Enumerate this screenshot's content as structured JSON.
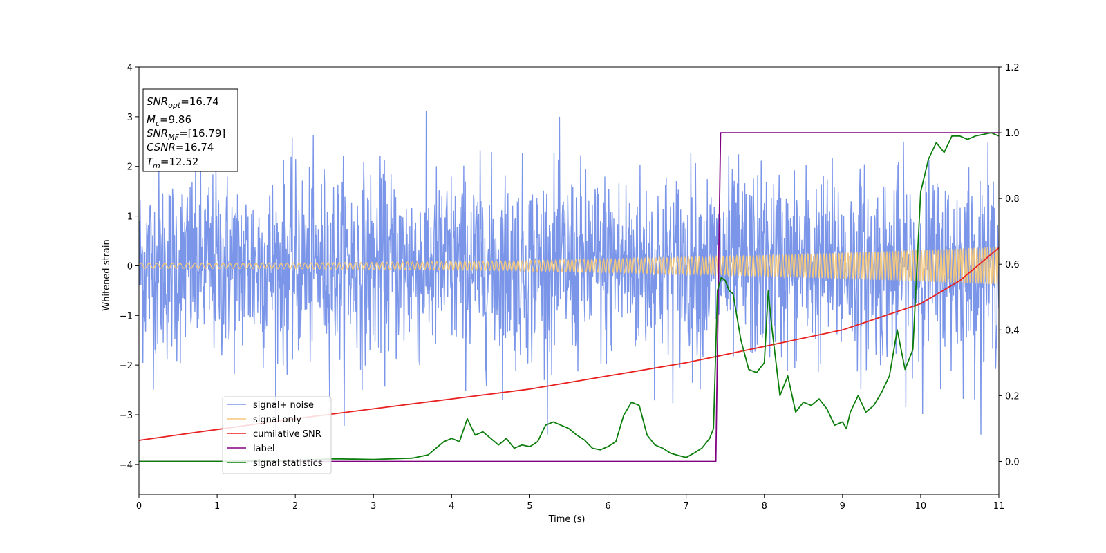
{
  "chart_data": {
    "type": "line",
    "xlabel": "Time (s)",
    "ylabel": "Whitened strain",
    "xlim": [
      0,
      11
    ],
    "ylim": [
      -4.6,
      4
    ],
    "y2lim": [
      -0.1,
      1.2
    ],
    "x_ticks": [
      "0",
      "1",
      "2",
      "3",
      "4",
      "5",
      "6",
      "7",
      "8",
      "9",
      "10",
      "11"
    ],
    "y_ticks": [
      "4",
      "3",
      "2",
      "1",
      "0",
      "−1",
      "−2",
      "−3",
      "−4"
    ],
    "y_tick_values": [
      4,
      3,
      2,
      1,
      0,
      -1,
      -2,
      -3,
      -4
    ],
    "y2_ticks": [
      "1.2",
      "1.0",
      "0.8",
      "0.6",
      "0.4",
      "0.2",
      "0.0"
    ],
    "y2_tick_values": [
      1.2,
      1.0,
      0.8,
      0.6,
      0.4,
      0.2,
      0.0
    ],
    "legend_position": "lower-left",
    "annotation": {
      "snr_opt": {
        "var": "SNR",
        "sub": "opt",
        "value": "=16.74"
      },
      "mc": {
        "var": "M",
        "sub": "c",
        "value": "=9.86"
      },
      "snr_mf": {
        "var": "SNR",
        "sub": "MF",
        "value": "=[16.79]"
      },
      "csnr": {
        "var": "CSNR",
        "sub": "",
        "value": "=16.74"
      },
      "tm": {
        "var": "T",
        "sub": "m",
        "value": "=12.52"
      }
    },
    "series": [
      {
        "name": "signal+ noise",
        "color": "#7b96e9",
        "axis": "left",
        "note": "noisy whitened strain, roughly |y| up to 3.4"
      },
      {
        "name": "signal only",
        "color": "#f5c87a",
        "axis": "left",
        "note": "chirp; amplitude ~0.05 at t=0 growing to ~0.38 at t=11"
      },
      {
        "name": "cumilative SNR",
        "color": "#e82020",
        "axis": "right",
        "x": [
          0,
          1,
          2,
          3,
          4,
          5,
          6,
          7,
          8,
          9,
          10,
          10.5,
          11
        ],
        "values": [
          0.064,
          0.097,
          0.13,
          0.16,
          0.19,
          0.22,
          0.26,
          0.3,
          0.35,
          0.4,
          0.48,
          0.55,
          0.65
        ]
      },
      {
        "name": "label",
        "color": "#800080",
        "axis": "right",
        "x": [
          0,
          7.38,
          7.44,
          11
        ],
        "values": [
          0,
          0,
          1,
          1
        ]
      },
      {
        "name": "signal statistics",
        "color": "#0a7d0a",
        "axis": "right",
        "x": [
          0,
          1,
          2,
          2.5,
          3,
          3.5,
          3.7,
          3.8,
          3.9,
          4.0,
          4.1,
          4.2,
          4.3,
          4.4,
          4.5,
          4.6,
          4.7,
          4.8,
          4.9,
          5.0,
          5.1,
          5.2,
          5.3,
          5.4,
          5.5,
          5.6,
          5.7,
          5.8,
          5.9,
          6.0,
          6.1,
          6.2,
          6.3,
          6.4,
          6.5,
          6.6,
          6.7,
          6.8,
          6.9,
          7.0,
          7.1,
          7.2,
          7.3,
          7.35,
          7.4,
          7.45,
          7.5,
          7.55,
          7.6,
          7.7,
          7.8,
          7.9,
          8.0,
          8.05,
          8.1,
          8.2,
          8.3,
          8.4,
          8.5,
          8.6,
          8.7,
          8.8,
          8.9,
          9.0,
          9.05,
          9.1,
          9.2,
          9.3,
          9.4,
          9.5,
          9.6,
          9.7,
          9.8,
          9.9,
          10.0,
          10.1,
          10.2,
          10.3,
          10.4,
          10.5,
          10.6,
          10.7,
          10.8,
          10.9,
          11.0
        ],
        "values": [
          0,
          0,
          0.003,
          0.008,
          0.006,
          0.01,
          0.02,
          0.04,
          0.06,
          0.07,
          0.06,
          0.13,
          0.08,
          0.09,
          0.07,
          0.05,
          0.07,
          0.04,
          0.05,
          0.045,
          0.06,
          0.11,
          0.12,
          0.11,
          0.1,
          0.08,
          0.065,
          0.04,
          0.035,
          0.045,
          0.06,
          0.14,
          0.18,
          0.17,
          0.08,
          0.05,
          0.04,
          0.025,
          0.018,
          0.012,
          0.025,
          0.04,
          0.07,
          0.1,
          0.52,
          0.56,
          0.55,
          0.52,
          0.51,
          0.37,
          0.28,
          0.27,
          0.3,
          0.52,
          0.4,
          0.2,
          0.26,
          0.15,
          0.18,
          0.17,
          0.19,
          0.16,
          0.11,
          0.12,
          0.1,
          0.15,
          0.2,
          0.15,
          0.17,
          0.21,
          0.26,
          0.4,
          0.28,
          0.34,
          0.82,
          0.92,
          0.97,
          0.94,
          0.99,
          0.99,
          0.98,
          0.99,
          0.995,
          1.0,
          0.99
        ]
      }
    ]
  }
}
